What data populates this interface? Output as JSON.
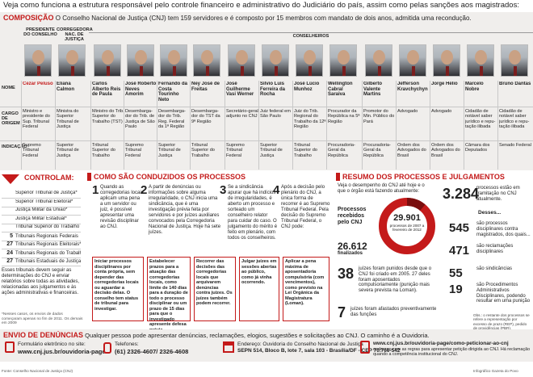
{
  "header": "Veja como funciona a estrutura responsável pelo controle financeiro e administrativo do Judiciário do país, assim como pelas sanções aos magistrados:",
  "composicao": {
    "title": "COMPOSIÇÃO",
    "desc": "O Conselho Nacional de Justiça (CNJ) tem 159 servidores e é composto por 15 membros com mandato de dois anos, admitida uma recondução.",
    "role_president": "PRESIDENTE DO CONSELHO",
    "role_corregedora": "CORREGEDORA NAC. DE JUSTIÇA",
    "role_conselheiros": "CONSELHEIROS",
    "row_nome": "NOME",
    "row_cargo": "CARGO DE ORIGEM",
    "row_indicacao": "INDICAÇÃO",
    "members": [
      {
        "name": "Cezar Peluso",
        "cargo": "Ministro e presidente do Sup. Tribunal Federal",
        "ind": "Supremo Tribunal Federal"
      },
      {
        "name": "Eliana Calmon",
        "cargo": "Ministra do Superior Tribunal de Justiça",
        "ind": "Superior Tribunal de Justiça"
      },
      {
        "name": "Carlos Alberto Reis de Paula",
        "cargo": "Ministro do Trib. Superior do Trabalho (TST)",
        "ind": "Tribunal Superior do Trabalho"
      },
      {
        "name": "José Roberto Neves Amorim",
        "cargo": "Desembarga-dor do Trib. de Justiça de São Paulo",
        "ind": "Supremo Tribunal Federal"
      },
      {
        "name": "Fernando da Costa Tourinho Neto",
        "cargo": "Desembarga-dor do Trib. Reg. Federal da 1ª Região",
        "ind": "Superior Tribunal de Justiça"
      },
      {
        "name": "Ney José de Freitas",
        "cargo": "Desembarga-dor do TST da 9ª Região",
        "ind": "Tribunal Superior do Trabalho"
      },
      {
        "name": "José Guilherme Vasi Werner",
        "cargo": "Secretário-geral adjunto no CNJ",
        "ind": "Supremo Tribunal Federal"
      },
      {
        "name": "Sílvio Luís Ferreira da Rocha",
        "cargo": "Juiz federal em São Paulo",
        "ind": "Superior Tribunal de Justiça"
      },
      {
        "name": "José Lúcio Munhoz",
        "cargo": "Juiz do Trib. Regional do Trabalho da 12ª Região",
        "ind": "Tribunal Superior do Trabalho"
      },
      {
        "name": "Wellington Cabral Saraiva",
        "cargo": "Procurador da República na 5ª Região",
        "ind": "Procuradoria-Geral da República"
      },
      {
        "name": "Gilberto Valente Martins",
        "cargo": "Promotor do Min. Público do Pará",
        "ind": "Procuradoria-Geral da República"
      },
      {
        "name": "Jefferson Kravchychyn",
        "cargo": "Advogado",
        "ind": "Ordem dos Advogados do Brasil"
      },
      {
        "name": "Jorge Hélio",
        "cargo": "Advogado",
        "ind": "Ordem dos Advogados do Brasil"
      },
      {
        "name": "Marcelo Nobre",
        "cargo": "Cidadão de notável saber jurídico e repu-tação ilibada",
        "ind": "Câmara dos Deputados"
      },
      {
        "name": "Bruno Dantas",
        "cargo": "Cidadão de notável saber jurídico e repu-tação ilibada",
        "ind": "Senado Federal"
      }
    ]
  },
  "controlam": {
    "title": "CONTROLAM:",
    "items": [
      {
        "n": "",
        "label": "Superior Tribunal de Justiça*"
      },
      {
        "n": "",
        "label": "Superior Tribunal Eleitoral*"
      },
      {
        "n": "",
        "label": "Justiça Militar da União*"
      },
      {
        "n": "",
        "label": "Justiça Militar Estadual*"
      },
      {
        "n": "",
        "label": "Tribunal Superior do Trabalho"
      },
      {
        "n": "5",
        "label": "Tribunais Regionais Federais"
      },
      {
        "n": "27",
        "label": "Tribunais Regionais Eleitorais*"
      },
      {
        "n": "24",
        "label": "Tribunais Regionais do Trabalho"
      },
      {
        "n": "27",
        "label": "Tribunais Estaduais de Justiça"
      }
    ],
    "note": "Esses tribunais devem seguir as determinações do CNJ e enviar relatórios sobre todas as atividades, relacionadas aos julgamentos e às ações administrativas e financeiras.",
    "footnote": "*Nesses casos, os envios de dados começaram apenas no fim de 2011. Os demais em 2009"
  },
  "processos": {
    "title": "COMO SÃO CONDUZIDOS OS PROCESSOS",
    "steps": [
      {
        "n": "1",
        "text": "Quando as corregedorias locais aplicam uma pena a um servidor ou juiz, é possível apresentar uma revisão disciplinar ao CNJ."
      },
      {
        "n": "2",
        "text": "A partir de denúncias ou informações sobre alguma irregularidade, o CNJ inicia uma sindicância, que é uma investigação prévia feita por servidores e por juízes auxiliares convocados pela Corregedoria Nacional de Justiça. Hoje há sete juízes."
      },
      {
        "n": "3",
        "text": "Se a sindicância apurar que há indícios de irregularidades, é aberto um processo e sorteado um conselheiro relator para cuidar do caso. O julgamento do mérito é feito em plenário, com todos os conselheiros."
      },
      {
        "n": "4",
        "text": "Após a decisão pelo plenário do CNJ, a única forma de recorrer é ao Supremo Tribunal Federal. Pela decisão do Supremo Tribunal Federal, o CNJ pode:"
      }
    ],
    "outcomes": [
      "Iniciar processos disciplinares por conta própria, sem depender das corregedorias locais ou aguardar a decisão delas. O conselho tem status de tribunal para investigar.",
      "Estabelecer prazos para a atuação das corregedorias locais, como limite de 140 dias para a duração de todo o processo disciplinar ou um prazo de 15 dias para que o investigado apresente defesa prévia.",
      "Recorrer das decisões das corregedorias locais que arquivarem denúncias contra juízes. Os juízes também podem recorrer.",
      "Julgar juízes em sessões abertas ao público, como já vinha ocorrendo.",
      "Aplicar a pena máxima de aposentadoria compulsória (com vencimentos), como previsto na Lei Orgânica da Magistratura (Loman)."
    ]
  },
  "resumo": {
    "title": "RESUMO DOS PROCESSOS E JULGAMENTOS",
    "intro": "Veja o desempenho do CNJ até hoje e o que o órgão está fazendo atualmente:",
    "received_label": "Processos recebidos pelo CNJ",
    "donut_big": "29.901",
    "donut_sub": "processos de 2007 a fevereiro de 2012",
    "total": "26.612",
    "total_label": "finalizados",
    "s38_n": "38",
    "s38_text": "juízes foram punidos desde que o CNJ foi criado em 2005. 27 deles foram aposentados compulsoriamente (punição mais severa prevista na Loman).",
    "s7_n": "7",
    "s7_text": "juízes foram afastados preventivamente das funções",
    "s3284_n": "3.284",
    "s3284_text": "processos estão em tramitação no CNJ atualmente.",
    "desses": "Desses...",
    "breakdown": [
      {
        "n": "545",
        "text": "são processos disciplinares contra magistrados, dos quais..."
      },
      {
        "n": "471",
        "text": "são reclamações disciplinares"
      },
      {
        "n": "55",
        "text": "são sindicâncias"
      },
      {
        "n": "19",
        "text": "são Procedimentos Administrativos Disciplinares, podendo resultar em uma punição"
      }
    ],
    "obs": "Obs.: o restante dos processos se refere a representação por excesso de prazo (REP), pedido de providências (PBR), procedimento de controle administrativo (PCA) entre outros."
  },
  "denuncias": {
    "title": "ENVIO DE DENÚNCIAS",
    "desc": "Qualquer pessoa pode apresentar denúncias, reclamações, elogios, sugestões e solicitações ao CNJ. O caminho é a Ouvidoria.",
    "form_label": "Formulário eletrônico no site:",
    "form_url": "www.cnj.jus.br/ouvidoria-page",
    "phone_label": "Telefones:",
    "phone_value": "(61) 2326-4607/ 2326-4608",
    "addr_label": "Endereço: Ouvidoria do Conselho Nacional de Justiça",
    "addr_value": "SEPN 514, Bloco B, lote 7, sala 103 - Brasília/DF - CEP 70.760-542",
    "link_url": "www.cnj.jus.br/ouvidoria-page/como-peticionar-ao-cnj",
    "link_text": "endereço com as regras para apresentar petição dirigida ao CNJ. Há reclamação quando a competência institucional do CNJ."
  },
  "source": "Fonte: Conselho Nacional de Justiça (CNJ)",
  "credit": "Infográfico Gazeta do Povo",
  "colors": {
    "accent": "#c41a1a",
    "band": "#f0eeec"
  }
}
